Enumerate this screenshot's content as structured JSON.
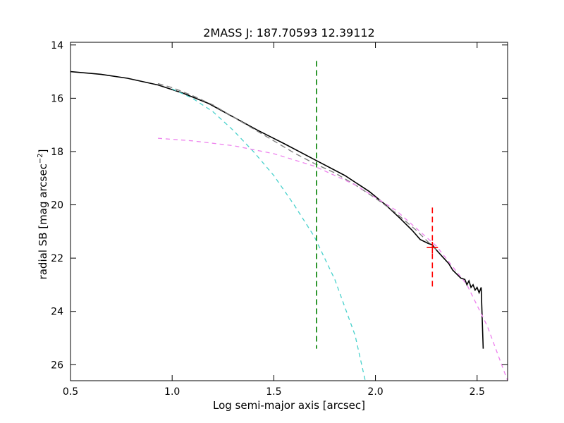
{
  "chart_data": {
    "type": "line",
    "title": "2MASS J: 187.70593 12.39112",
    "xlabel": "Log semi-major axis [arcsec]",
    "ylabel": "radial SB [mag arcsec",
    "ylabel_superscript": "−2",
    "ylabel_suffix": "]",
    "xlim": [
      0.5,
      2.65
    ],
    "ylim": [
      26.6,
      13.9
    ],
    "y_inverted": true,
    "grid": false,
    "x_ticks": [
      0.5,
      1.0,
      1.5,
      2.0,
      2.5
    ],
    "x_tick_labels": [
      "0.5",
      "1.0",
      "1.5",
      "2.0",
      "2.5"
    ],
    "y_ticks": [
      14,
      16,
      18,
      20,
      22,
      24,
      26
    ],
    "y_tick_labels": [
      "14",
      "16",
      "18",
      "20",
      "22",
      "24",
      "26"
    ],
    "series": [
      {
        "id": "profile",
        "color": "#000000",
        "dash": "none",
        "width": 1.6,
        "x": [
          0.5,
          0.65,
          0.78,
          0.93,
          1.05,
          1.18,
          1.3,
          1.42,
          1.55,
          1.7,
          1.85,
          1.97,
          2.05,
          2.12,
          2.18,
          2.22,
          2.26,
          2.28,
          2.3,
          2.33,
          2.36,
          2.38,
          2.4,
          2.42,
          2.44,
          2.45,
          2.46,
          2.47,
          2.48,
          2.49,
          2.5,
          2.51,
          2.52,
          2.53
        ],
        "y": [
          15.0,
          15.1,
          15.25,
          15.5,
          15.8,
          16.2,
          16.7,
          17.2,
          17.7,
          18.3,
          18.9,
          19.5,
          20.0,
          20.5,
          20.95,
          21.3,
          21.45,
          21.5,
          21.7,
          21.95,
          22.2,
          22.45,
          22.6,
          22.75,
          22.8,
          23.0,
          22.85,
          23.1,
          23.0,
          23.2,
          23.1,
          23.3,
          23.1,
          25.4
        ]
      },
      {
        "id": "sum-model",
        "color": "#808080",
        "dash": "8,5",
        "width": 1.4,
        "x": [
          0.93,
          1.0,
          1.1,
          1.2,
          1.3,
          1.4,
          1.5,
          1.6,
          1.7,
          1.8,
          1.9,
          2.0,
          2.1,
          2.2,
          2.3
        ],
        "y": [
          15.45,
          15.6,
          15.9,
          16.25,
          16.7,
          17.15,
          17.6,
          18.05,
          18.45,
          18.8,
          19.25,
          19.75,
          20.3,
          20.95,
          21.7
        ]
      },
      {
        "id": "bulge-model",
        "color": "#48d1cc",
        "dash": "6,5",
        "width": 1.3,
        "x": [
          1.0,
          1.1,
          1.2,
          1.3,
          1.4,
          1.5,
          1.6,
          1.7,
          1.8,
          1.9,
          1.95
        ],
        "y": [
          15.65,
          16.0,
          16.5,
          17.2,
          18.0,
          18.9,
          20.0,
          21.2,
          22.8,
          24.9,
          26.6
        ]
      },
      {
        "id": "disk-model",
        "color": "#ee82ee",
        "dash": "6,5",
        "width": 1.3,
        "x": [
          0.93,
          1.1,
          1.3,
          1.5,
          1.7,
          1.9,
          2.1,
          2.3,
          2.45,
          2.55,
          2.65
        ],
        "y": [
          17.5,
          17.6,
          17.78,
          18.08,
          18.55,
          19.25,
          20.2,
          21.55,
          23.0,
          24.55,
          26.6
        ]
      }
    ],
    "annotations": [
      {
        "id": "vline-green",
        "type": "vline",
        "x": 1.71,
        "y_from": 14.6,
        "y_to": 25.4,
        "color": "#008000",
        "dash": "8,5"
      },
      {
        "id": "vline-red",
        "type": "vline",
        "x": 2.28,
        "y_from": 20.1,
        "y_to": 23.1,
        "color": "#ff0000",
        "dash": "8,5"
      },
      {
        "id": "red-marker",
        "type": "plus",
        "x": 2.28,
        "y": 21.6,
        "color": "#ff0000"
      }
    ]
  }
}
